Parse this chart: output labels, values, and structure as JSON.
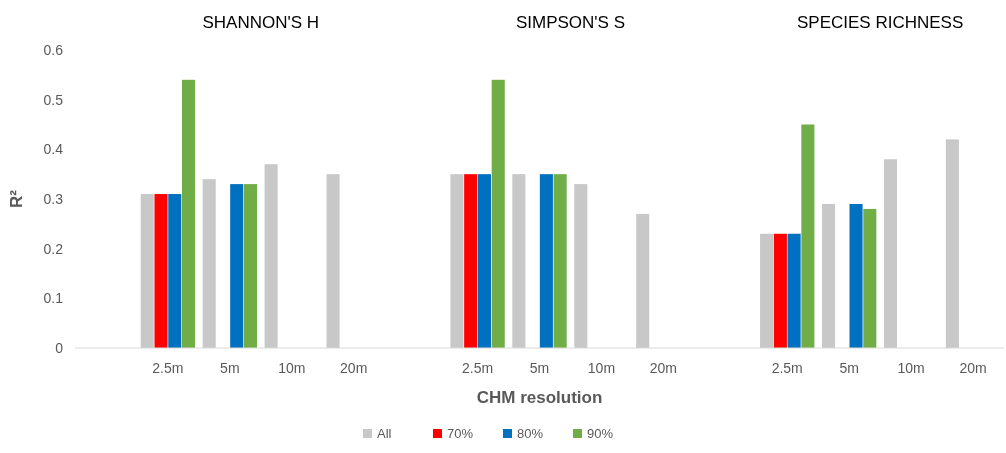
{
  "chart_data": {
    "type": "bar",
    "ylabel": "R²",
    "xlabel": "CHM resolution",
    "categories": [
      null,
      "2.5m",
      "5m",
      "10m",
      "20m",
      null,
      "2.5m",
      "5m",
      "10m",
      "20m",
      null,
      "2.5m",
      "5m",
      "10m",
      "20m"
    ],
    "series": [
      {
        "name": "All",
        "color": "#c8c8c8",
        "values": [
          null,
          0.31,
          0.34,
          0.37,
          0.35,
          null,
          0.35,
          0.35,
          0.33,
          0.27,
          null,
          0.23,
          0.29,
          0.38,
          0.42
        ]
      },
      {
        "name": "70%",
        "color": "#ff0000",
        "values": [
          null,
          0.31,
          null,
          null,
          null,
          null,
          0.35,
          null,
          null,
          null,
          null,
          0.23,
          null,
          null,
          null
        ]
      },
      {
        "name": "80%",
        "color": "#0070c0",
        "values": [
          null,
          0.31,
          0.33,
          null,
          null,
          null,
          0.35,
          0.35,
          null,
          null,
          null,
          0.23,
          0.29,
          null,
          null
        ]
      },
      {
        "name": "90%",
        "color": "#70ad47",
        "values": [
          null,
          0.54,
          0.33,
          null,
          null,
          null,
          0.54,
          0.35,
          null,
          null,
          null,
          0.45,
          0.28,
          null,
          null
        ]
      }
    ],
    "annotations": [
      "SHANNON'S  H",
      "SIMPSON'S S",
      "SPECIES RICHNESS"
    ],
    "ylim": [
      0,
      0.6
    ],
    "yticks": [
      0,
      0.1,
      0.2,
      0.3,
      0.4,
      0.5,
      0.6
    ],
    "grid": false,
    "legend": "bottom"
  }
}
